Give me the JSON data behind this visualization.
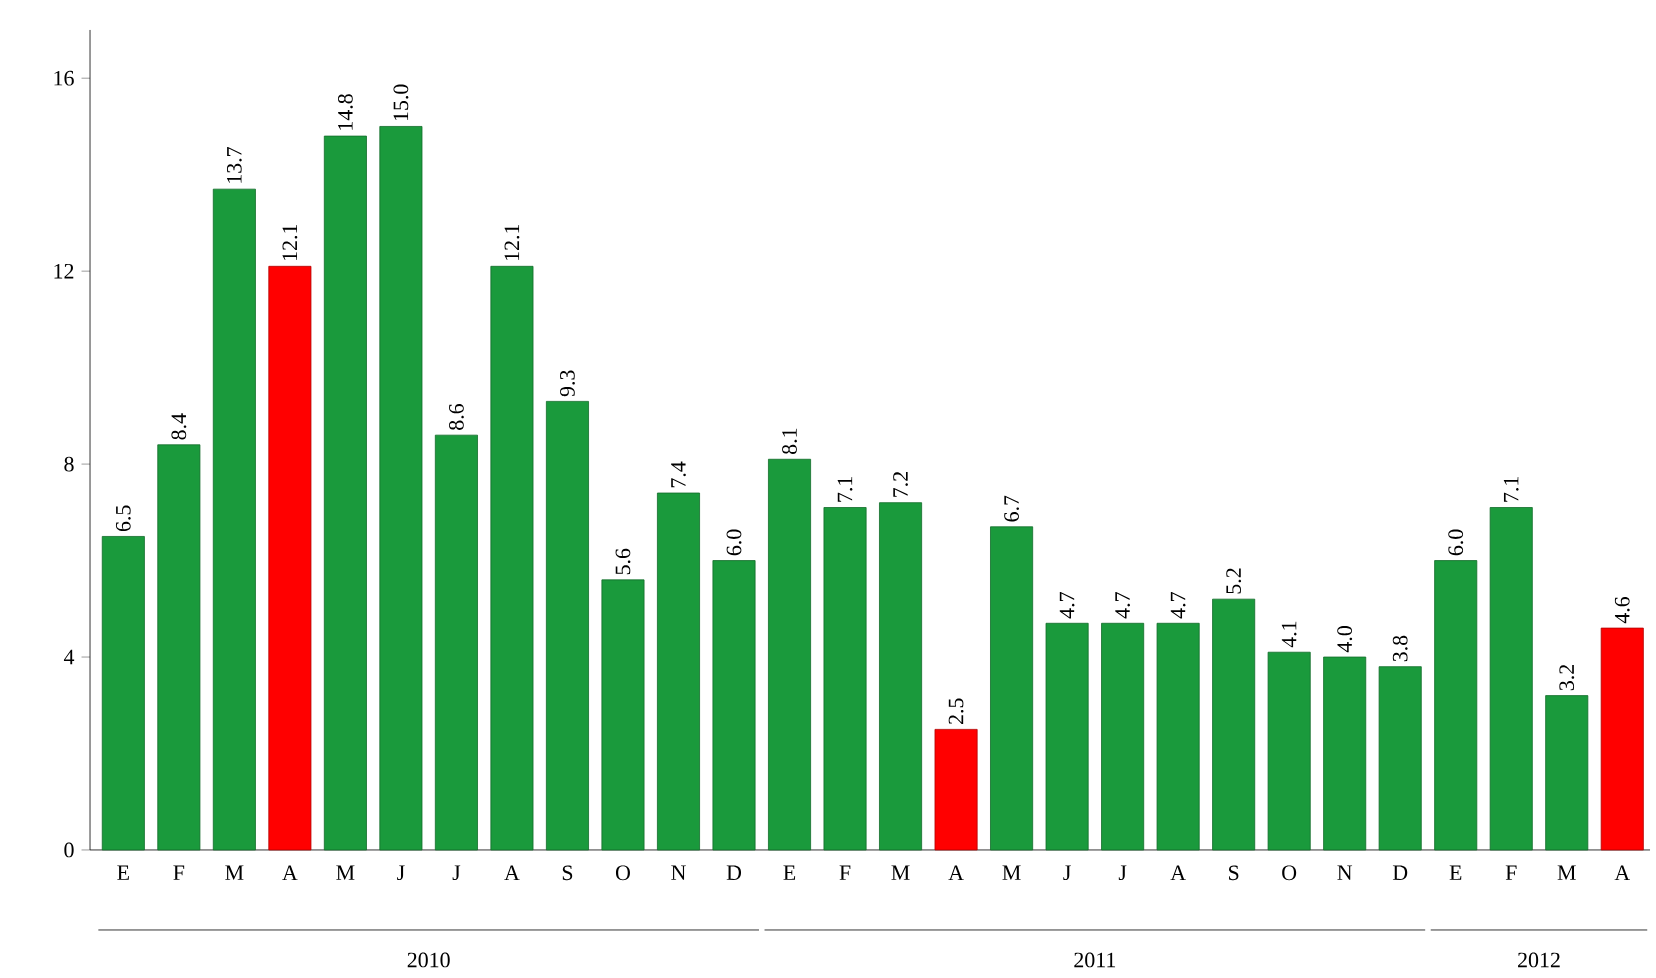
{
  "chart_data": {
    "type": "bar",
    "categories": [
      "E",
      "F",
      "M",
      "A",
      "M",
      "J",
      "J",
      "A",
      "S",
      "O",
      "N",
      "D",
      "E",
      "F",
      "M",
      "A",
      "M",
      "J",
      "J",
      "A",
      "S",
      "O",
      "N",
      "D",
      "E",
      "F",
      "M",
      "A"
    ],
    "values": [
      6.5,
      8.4,
      13.7,
      12.1,
      14.8,
      15.0,
      8.6,
      12.1,
      9.3,
      5.6,
      7.4,
      6.0,
      8.1,
      7.1,
      7.2,
      2.5,
      6.7,
      4.7,
      4.7,
      4.7,
      5.2,
      4.1,
      4.0,
      3.8,
      6.0,
      7.1,
      3.2,
      4.6
    ],
    "colors": [
      "#1a9a3c",
      "#1a9a3c",
      "#1a9a3c",
      "#ff0000",
      "#1a9a3c",
      "#1a9a3c",
      "#1a9a3c",
      "#1a9a3c",
      "#1a9a3c",
      "#1a9a3c",
      "#1a9a3c",
      "#1a9a3c",
      "#1a9a3c",
      "#1a9a3c",
      "#1a9a3c",
      "#ff0000",
      "#1a9a3c",
      "#1a9a3c",
      "#1a9a3c",
      "#1a9a3c",
      "#1a9a3c",
      "#1a9a3c",
      "#1a9a3c",
      "#1a9a3c",
      "#1a9a3c",
      "#1a9a3c",
      "#1a9a3c",
      "#ff0000"
    ],
    "annotations": [
      "2010",
      "2011",
      "2012"
    ],
    "ylim": [
      0,
      17
    ],
    "yticks": [
      0,
      4,
      8,
      12,
      16
    ],
    "value_labels": [
      "6.5",
      "8.4",
      "13.7",
      "12.1",
      "14.8",
      "15.0",
      "8.6",
      "12.1",
      "9.3",
      "5.6",
      "7.4",
      "6.0",
      "8.1",
      "7.1",
      "7.2",
      "2.5",
      "6.7",
      "4.7",
      "4.7",
      "4.7",
      "5.2",
      "4.1",
      "4.0",
      "3.8",
      "6.0",
      "7.1",
      "3.2",
      "4.6"
    ],
    "grid": false
  }
}
